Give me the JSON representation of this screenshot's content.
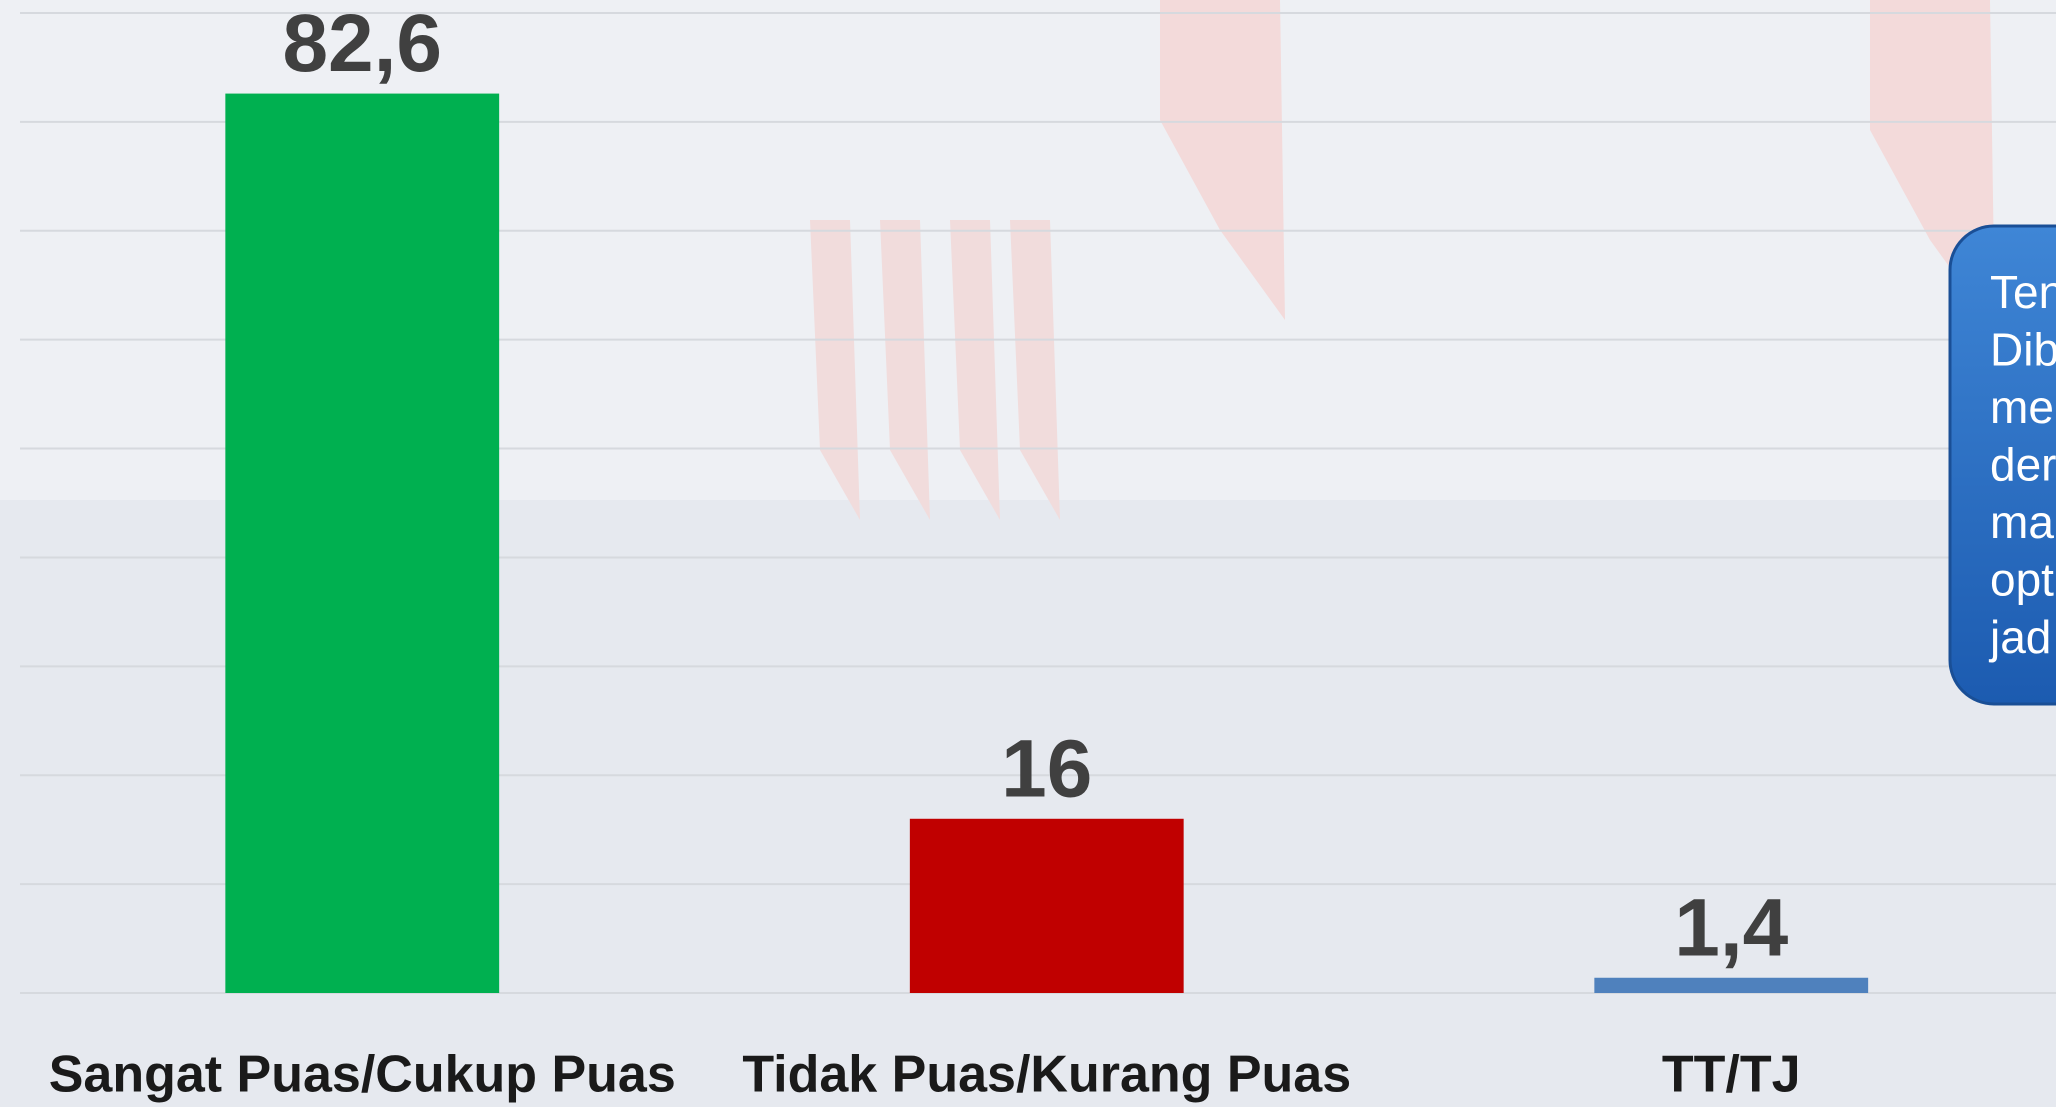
{
  "chart_data": {
    "type": "bar",
    "categories": [
      "Sangat Puas/Cukup Puas",
      "Tidak Puas/Kurang Puas",
      "TT/TJ"
    ],
    "values": [
      82.6,
      16,
      1.4
    ],
    "value_labels": [
      "82,6",
      "16",
      "1,4"
    ],
    "colors": [
      "#00b050",
      "#c00000",
      "#4f81bd"
    ],
    "ylim": [
      0,
      90
    ],
    "yticks": [
      0,
      10,
      20,
      30,
      40,
      50,
      60,
      70,
      80,
      90
    ],
    "grid": true,
    "annotation": [
      "Ten",
      "Dib",
      "me",
      "der",
      "ma",
      "opt",
      "jad"
    ]
  }
}
